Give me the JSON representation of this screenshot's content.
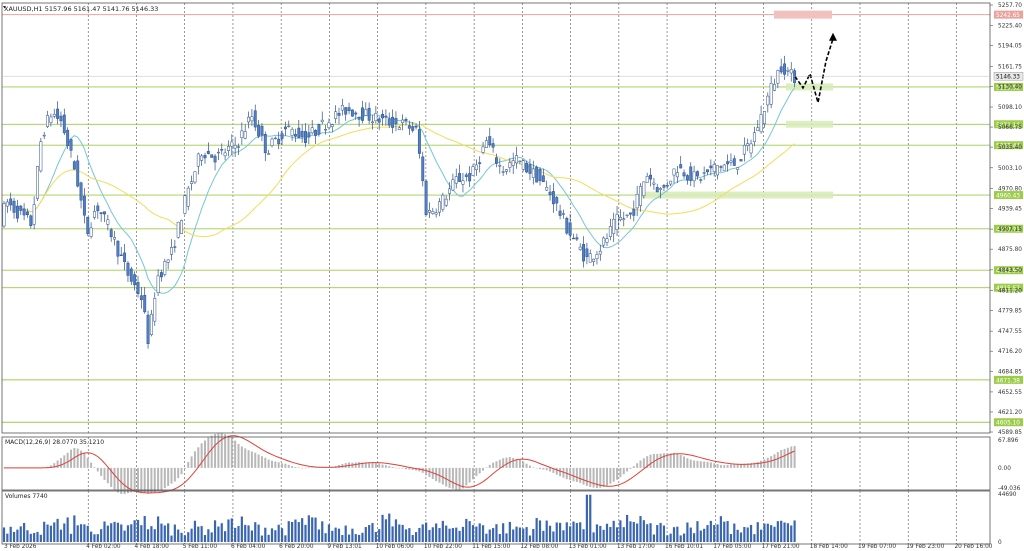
{
  "header": {
    "symbol_text": "XAUUSD,H1  5157.96 5161.47 5141.76 5146.33"
  },
  "chart_data": {
    "type": "candlestick",
    "main": {
      "symbol": "XAUUSD",
      "timeframe": "H1",
      "ohlc_readout": {
        "open": 5157.96,
        "high": 5161.47,
        "low": 5141.76,
        "close": 5146.33
      },
      "price_axis_ticks": [
        "5257.70",
        "5225.40",
        "5194.05",
        "5161.75",
        "5130.40",
        "5098.10",
        "5066.75",
        "5035.40",
        "5003.10",
        "4970.80",
        "4939.45",
        "4907.15",
        "4875.80",
        "4843.50",
        "4811.20",
        "4779.85",
        "4747.55",
        "4716.20",
        "4684.85",
        "4652.55",
        "4621.20",
        "4589.85"
      ],
      "ylim": [
        4589.85,
        5257.7
      ],
      "current_price_label": "5146.33",
      "levels": [
        {
          "label": "5242.65",
          "color": "#e8a39c"
        },
        {
          "label": "5129.52",
          "color": "#9ccc4a"
        },
        {
          "label": "5071.16",
          "color": "#9ccc4a"
        },
        {
          "label": "5038.44",
          "color": "#9ccc4a"
        },
        {
          "label": "4960.43",
          "color": "#9ccc4a"
        },
        {
          "label": "4907.72",
          "color": "#9ccc4a"
        },
        {
          "label": "4842.90",
          "color": "#9ccc4a"
        },
        {
          "label": "4815.57",
          "color": "#9ccc4a"
        },
        {
          "label": "4671.38",
          "color": "#9ccc4a"
        },
        {
          "label": "4605.10",
          "color": "#9ccc4a"
        }
      ],
      "colors": {
        "bull": "#ffffff",
        "bear": "#4f80c8",
        "fast_ma": "#77c6d4",
        "slow_ma": "#f2dc5a",
        "grid": "#555555"
      }
    },
    "macd": {
      "label": "MACD(12,26,9) 28.0770 35.1210",
      "ticks": [
        "67.896",
        "0.00",
        "-49.036"
      ],
      "ylim": [
        -49.036,
        67.896
      ],
      "signal_color": "#e0403a"
    },
    "volume": {
      "label": "Volumes 7740",
      "ticks": [
        "44690",
        "0"
      ],
      "ylim": [
        0,
        44690
      ]
    },
    "time_labels": [
      "3 Feb 2026",
      "4 Feb 02:00",
      "4 Feb 18:00",
      "5 Feb 11:00",
      "6 Feb 04:00",
      "6 Feb 20:00",
      "9 Feb 13:01",
      "10 Feb 06:00",
      "10 Feb 22:00",
      "11 Feb 15:00",
      "12 Feb 08:00",
      "13 Feb 01:00",
      "13 Feb 17:00",
      "16 Feb 10:01",
      "17 Feb 05:00",
      "17 Feb 21:00",
      "18 Feb 14:00",
      "19 Feb 07:00",
      "19 Feb 23:00",
      "20 Feb 16:00"
    ]
  }
}
